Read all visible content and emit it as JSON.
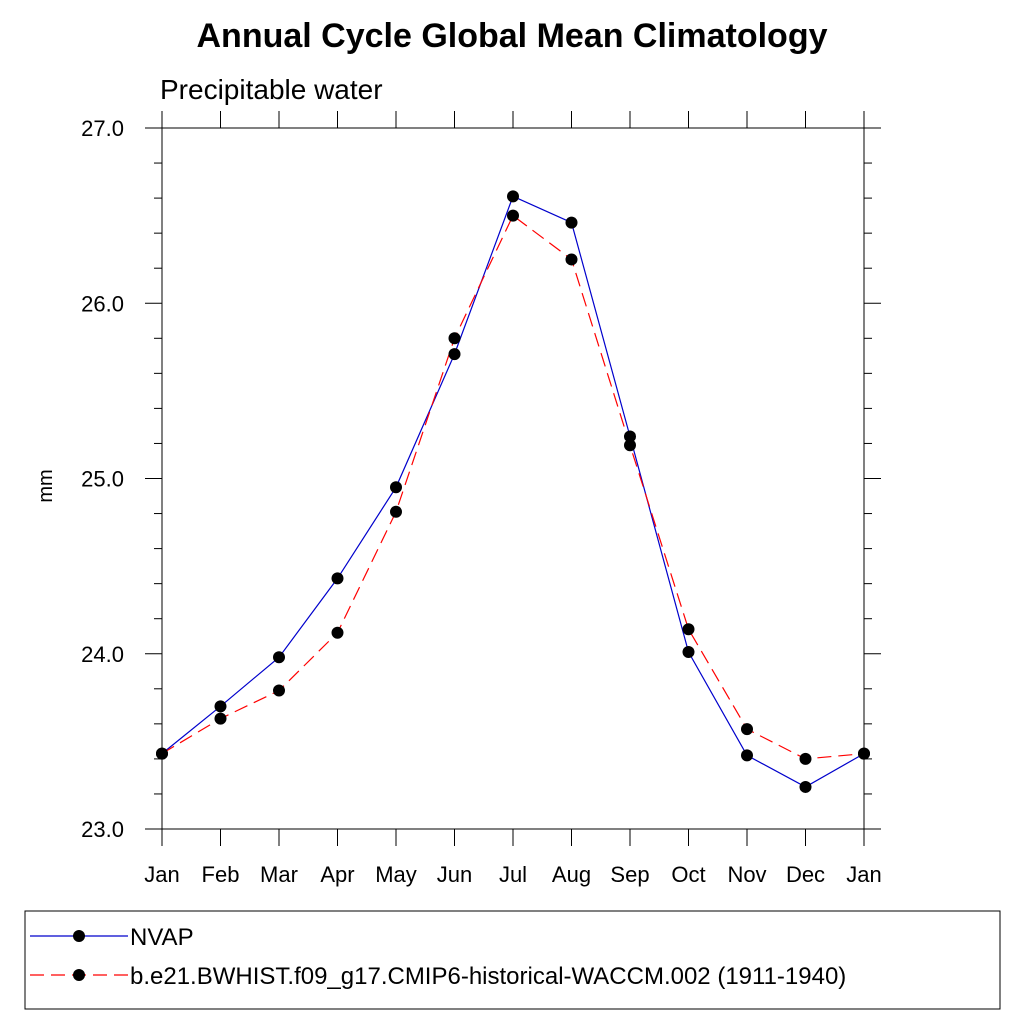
{
  "chart_data": {
    "type": "line",
    "title": "Annual Cycle Global Mean Climatology",
    "subtitle": "Precipitable water",
    "ylabel": "mm",
    "xlabel": "",
    "categories": [
      "Jan",
      "Feb",
      "Mar",
      "Apr",
      "May",
      "Jun",
      "Jul",
      "Aug",
      "Sep",
      "Oct",
      "Nov",
      "Dec",
      "Jan"
    ],
    "ylim": [
      23.0,
      27.0
    ],
    "yticks": [
      "23.0",
      "24.0",
      "25.0",
      "26.0",
      "27.0"
    ],
    "yminor_step": 0.2,
    "grid": false,
    "legend_position": "bottom",
    "series": [
      {
        "name": "NVAP",
        "color": "#0000cc",
        "dash": "solid",
        "marker": "filled-circle",
        "values": [
          23.43,
          23.7,
          23.98,
          24.43,
          24.95,
          25.71,
          26.61,
          26.46,
          25.24,
          24.01,
          23.42,
          23.24,
          23.43
        ]
      },
      {
        "name": "b.e21.BWHIST.f09_g17.CMIP6-historical-WACCM.002 (1911-1940)",
        "color": "#ff0000",
        "dash": "dashed",
        "marker": "filled-circle",
        "values": [
          23.43,
          23.63,
          23.79,
          24.12,
          24.81,
          25.8,
          26.5,
          26.25,
          25.19,
          24.14,
          23.57,
          23.4,
          23.43
        ]
      }
    ]
  }
}
